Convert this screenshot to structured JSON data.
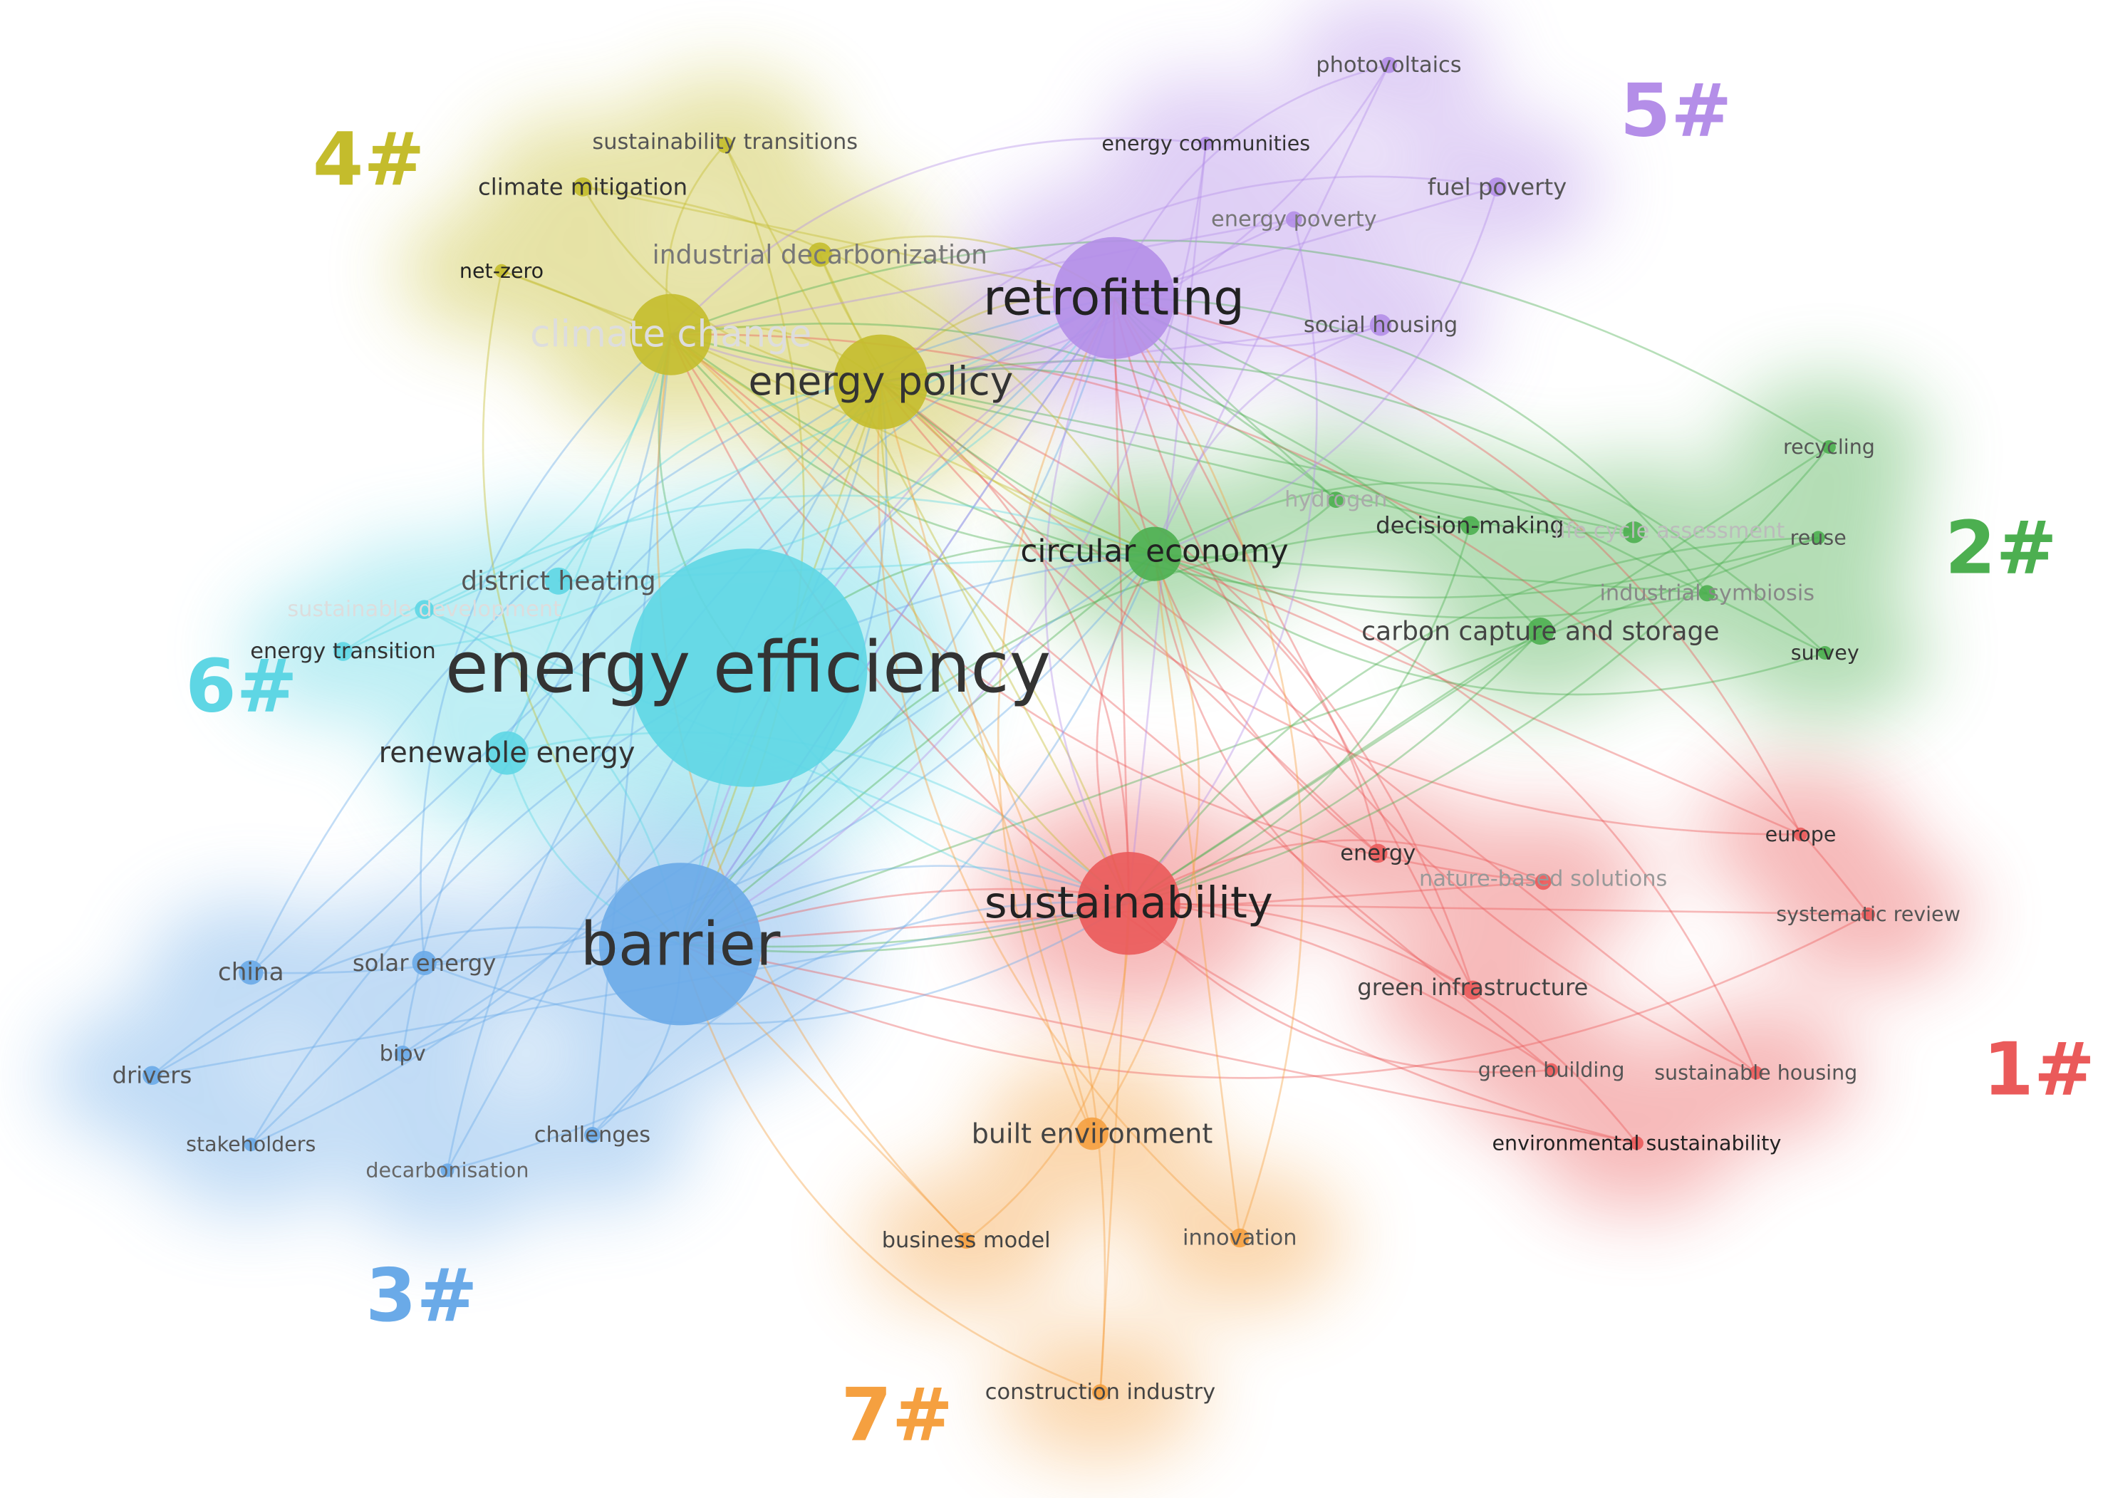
{
  "clusters": [
    {
      "label": "1#",
      "color": "#ea5a5a",
      "nodes": [
        {
          "label": "sustainability"
        },
        {
          "label": "energy"
        },
        {
          "label": "nature-based solutions"
        },
        {
          "label": "europe"
        },
        {
          "label": "systematic review"
        },
        {
          "label": "green infrastructure"
        },
        {
          "label": "green building"
        },
        {
          "label": "sustainable housing"
        },
        {
          "label": "environmental sustainability"
        }
      ]
    },
    {
      "label": "2#",
      "color": "#4caf50",
      "nodes": [
        {
          "label": "circular economy"
        },
        {
          "label": "recycling"
        },
        {
          "label": "hydrogen"
        },
        {
          "label": "decision-making"
        },
        {
          "label": "life cycle assessment"
        },
        {
          "label": "reuse"
        },
        {
          "label": "industrial symbiosis"
        },
        {
          "label": "carbon capture and storage"
        },
        {
          "label": "survey"
        }
      ]
    },
    {
      "label": "3#",
      "color": "#6aaae8",
      "nodes": [
        {
          "label": "barrier"
        },
        {
          "label": "china"
        },
        {
          "label": "solar energy"
        },
        {
          "label": "bipv"
        },
        {
          "label": "drivers"
        },
        {
          "label": "stakeholders"
        },
        {
          "label": "challenges"
        },
        {
          "label": "decarbonisation"
        }
      ]
    },
    {
      "label": "4#",
      "color": "#c4bc2c",
      "nodes": [
        {
          "label": "energy policy"
        },
        {
          "label": "climate change"
        },
        {
          "label": "sustainability transitions"
        },
        {
          "label": "climate mitigation"
        },
        {
          "label": "net-zero"
        },
        {
          "label": "industrial decarbonization"
        }
      ]
    },
    {
      "label": "5#",
      "color": "#b48ee8",
      "nodes": [
        {
          "label": "retrofitting"
        },
        {
          "label": "photovoltaics"
        },
        {
          "label": "energy communities"
        },
        {
          "label": "fuel poverty"
        },
        {
          "label": "energy poverty"
        },
        {
          "label": "social housing"
        }
      ]
    },
    {
      "label": "6#",
      "color": "#5ed6e4",
      "nodes": [
        {
          "label": "energy efficiency"
        },
        {
          "label": "district heating"
        },
        {
          "label": "sustainable development"
        },
        {
          "label": "energy transition"
        },
        {
          "label": "renewable energy"
        }
      ]
    },
    {
      "label": "7#",
      "color": "#f5a040",
      "nodes": [
        {
          "label": "built environment"
        },
        {
          "label": "business model"
        },
        {
          "label": "innovation"
        },
        {
          "label": "construction industry"
        }
      ]
    }
  ]
}
